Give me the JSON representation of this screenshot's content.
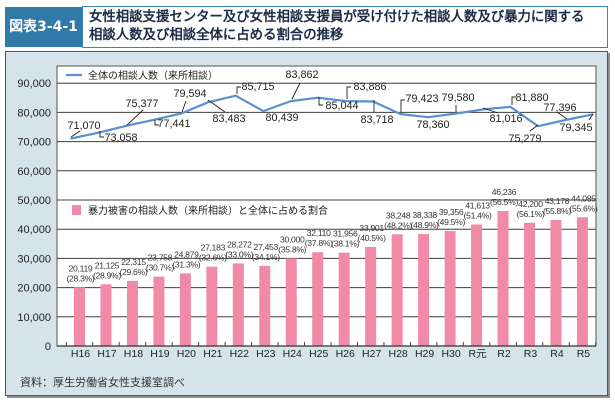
{
  "header": {
    "figure_label": "図表3-4-1",
    "title_line1": "女性相談支援センター及び女性相談支援員が受け付けた相談人数及び暴力に関する",
    "title_line2": "相談人数及び相談全体に占める割合の推移"
  },
  "chart_data": {
    "type": "bar",
    "title": "女性相談支援センター及び女性相談支援員が受け付けた相談人数及び暴力に関する相談人数及び相談全体に占める割合の推移",
    "xlabel": "",
    "ylabel": "",
    "categories": [
      "H16",
      "H17",
      "H18",
      "H19",
      "H20",
      "H21",
      "H22",
      "H23",
      "H24",
      "H25",
      "H26",
      "H27",
      "H28",
      "H29",
      "H30",
      "R元",
      "R2",
      "R3",
      "R4",
      "R5"
    ],
    "ylim": [
      0,
      90000
    ],
    "yticks": [
      0,
      10000,
      20000,
      30000,
      40000,
      50000,
      60000,
      70000,
      80000,
      90000
    ],
    "ytick_labels": [
      "0",
      "10,000",
      "20,000",
      "30,000",
      "40,000",
      "50,000",
      "60,000",
      "70,000",
      "80,000",
      "90,000"
    ],
    "grid": true,
    "series": [
      {
        "name": "全体の相談人数（来所相談）",
        "type": "line",
        "color": "#5a8fd2",
        "legend_position": "top-left",
        "values": [
          71070,
          73058,
          75377,
          77441,
          79594,
          83483,
          85715,
          80439,
          83862,
          85044,
          83886,
          83718,
          79423,
          78360,
          79580,
          81016,
          81880,
          75279,
          77396,
          79345
        ],
        "value_labels": [
          "71,070",
          "73,058",
          "75,377",
          "77,441",
          "79,594",
          "83,483",
          "85,715",
          "80,439",
          "83,862",
          "85,044",
          "83,886",
          "83,718",
          "79,423",
          "78,360",
          "79,580",
          "81,016",
          "81,880",
          "75,279",
          "77,396",
          "79,345"
        ]
      },
      {
        "name": "暴力被害の相談人数（来所相談）と全体に占める割合",
        "type": "bar",
        "color": "#f18aa6",
        "legend_position": "middle-left",
        "values": [
          20119,
          21125,
          22315,
          23758,
          24879,
          27183,
          28272,
          27453,
          30000,
          32110,
          31956,
          33901,
          38248,
          38338,
          39356,
          41613,
          46236,
          42200,
          43178,
          44085
        ],
        "value_labels": [
          "20,119",
          "21,125",
          "22,315",
          "23,758",
          "24,879",
          "27,183",
          "28,272",
          "27,453",
          "30,000",
          "32,110",
          "31,956",
          "33,901",
          "38,248",
          "38,338",
          "39,356",
          "41,613",
          "46,236",
          "42,200",
          "43,178",
          "44,085"
        ],
        "percent_values": [
          28.3,
          28.9,
          29.6,
          30.7,
          31.3,
          32.6,
          33.0,
          34.1,
          35.8,
          37.8,
          38.1,
          40.5,
          48.2,
          48.9,
          49.5,
          51.4,
          56.5,
          56.1,
          55.8,
          55.6
        ],
        "percent_labels": [
          "(28.3%)",
          "(28.9%)",
          "(29.6%)",
          "(30.7%)",
          "(31.3%)",
          "(32.6%)",
          "(33.0%)",
          "(34.1%)",
          "(35.8%)",
          "(37.8%)",
          "(38.1%)",
          "(40.5%)",
          "(48.2%)",
          "(48.9%)",
          "(49.5%)",
          "(51.4%)",
          "(56.5%)",
          "(56.1%)",
          "(55.8%)",
          "(55.6%)"
        ]
      }
    ],
    "highlight": {
      "category": "R5",
      "series": "全体の相談人数（来所相談）",
      "color": "#e8423f"
    }
  },
  "colors": {
    "figure_label_bg": "#2f7aa8",
    "panel_bg": "#d5e3eb"
  },
  "source": "資料：厚生労働省女性支援室調べ"
}
